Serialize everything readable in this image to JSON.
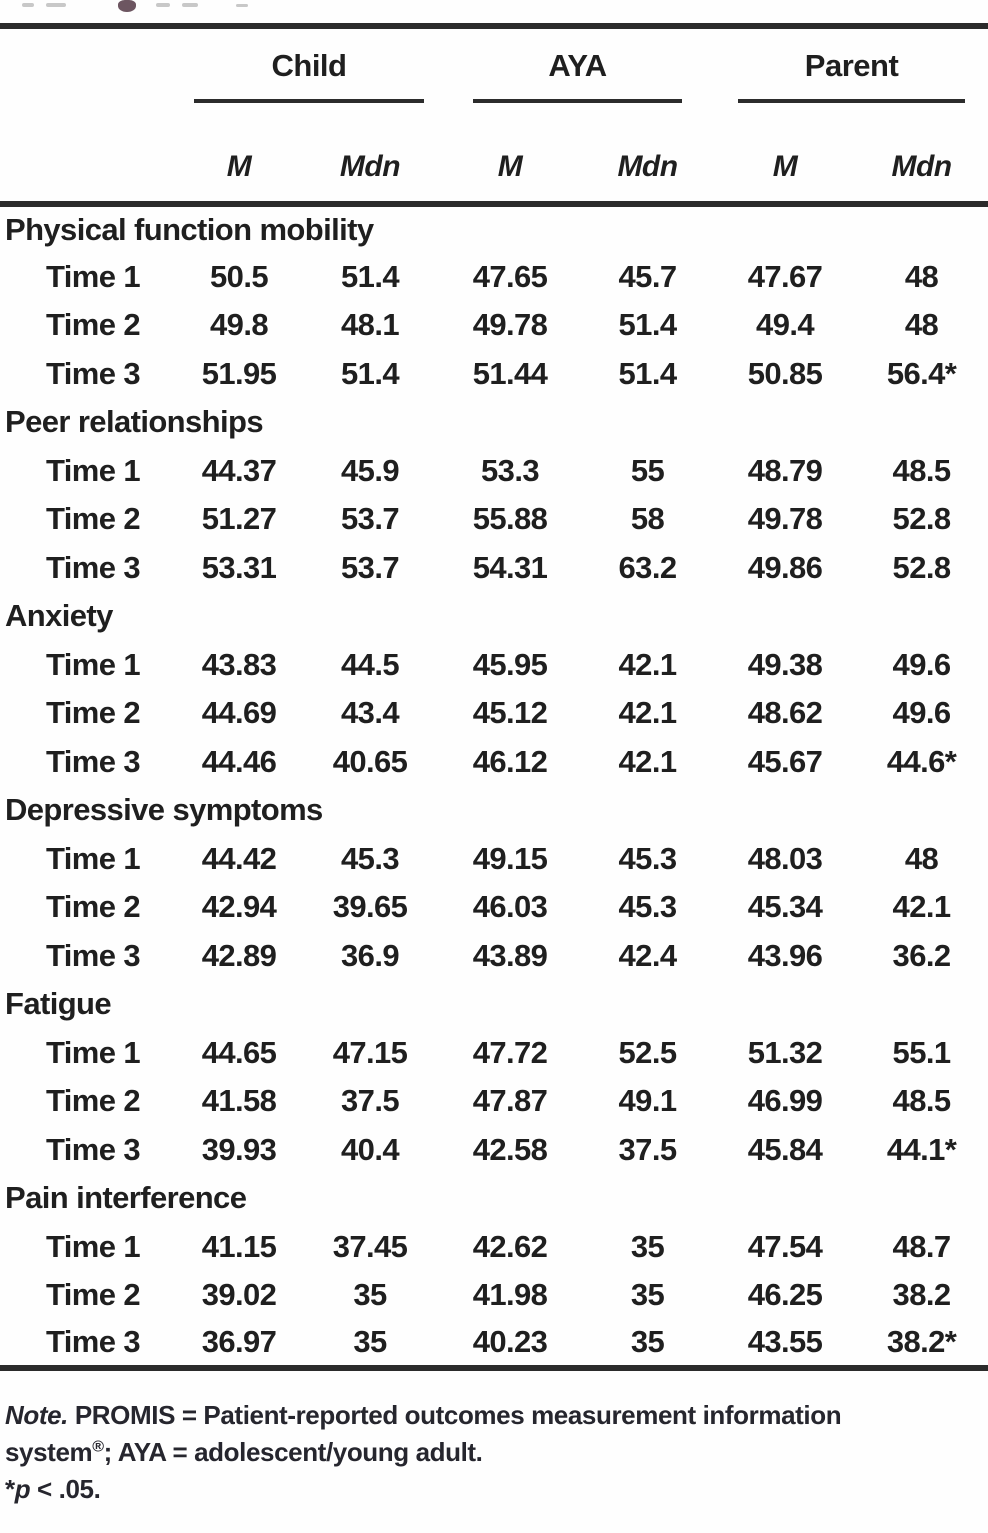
{
  "table": {
    "groups": [
      {
        "label": "Child"
      },
      {
        "label": "AYA"
      },
      {
        "label": "Parent"
      }
    ],
    "subheaders": [
      "M",
      "Mdn",
      "M",
      "Mdn",
      "M",
      "Mdn"
    ],
    "sections": [
      {
        "name": "Physical function mobility",
        "rows": [
          {
            "label": "Time 1",
            "values": [
              "50.5",
              "51.4",
              "47.65",
              "45.7",
              "47.67",
              "48"
            ]
          },
          {
            "label": "Time 2",
            "values": [
              "49.8",
              "48.1",
              "49.78",
              "51.4",
              "49.4",
              "48"
            ]
          },
          {
            "label": "Time 3",
            "values": [
              "51.95",
              "51.4",
              "51.44",
              "51.4",
              "50.85",
              "56.4*"
            ]
          }
        ]
      },
      {
        "name": "Peer relationships",
        "rows": [
          {
            "label": "Time 1",
            "values": [
              "44.37",
              "45.9",
              "53.3",
              "55",
              "48.79",
              "48.5"
            ]
          },
          {
            "label": "Time 2",
            "values": [
              "51.27",
              "53.7",
              "55.88",
              "58",
              "49.78",
              "52.8"
            ]
          },
          {
            "label": "Time 3",
            "values": [
              "53.31",
              "53.7",
              "54.31",
              "63.2",
              "49.86",
              "52.8"
            ]
          }
        ]
      },
      {
        "name": "Anxiety",
        "rows": [
          {
            "label": "Time 1",
            "values": [
              "43.83",
              "44.5",
              "45.95",
              "42.1",
              "49.38",
              "49.6"
            ]
          },
          {
            "label": "Time 2",
            "values": [
              "44.69",
              "43.4",
              "45.12",
              "42.1",
              "48.62",
              "49.6"
            ]
          },
          {
            "label": "Time 3",
            "values": [
              "44.46",
              "40.65",
              "46.12",
              "42.1",
              "45.67",
              "44.6*"
            ]
          }
        ]
      },
      {
        "name": "Depressive symptoms",
        "rows": [
          {
            "label": "Time 1",
            "values": [
              "44.42",
              "45.3",
              "49.15",
              "45.3",
              "48.03",
              "48"
            ]
          },
          {
            "label": "Time 2",
            "values": [
              "42.94",
              "39.65",
              "46.03",
              "45.3",
              "45.34",
              "42.1"
            ]
          },
          {
            "label": "Time 3",
            "values": [
              "42.89",
              "36.9",
              "43.89",
              "42.4",
              "43.96",
              "36.2"
            ]
          }
        ]
      },
      {
        "name": "Fatigue",
        "rows": [
          {
            "label": "Time 1",
            "values": [
              "44.65",
              "47.15",
              "47.72",
              "52.5",
              "51.32",
              "55.1"
            ]
          },
          {
            "label": "Time 2",
            "values": [
              "41.58",
              "37.5",
              "47.87",
              "49.1",
              "46.99",
              "48.5"
            ]
          },
          {
            "label": "Time 3",
            "values": [
              "39.93",
              "40.4",
              "42.58",
              "37.5",
              "45.84",
              "44.1*"
            ]
          }
        ]
      },
      {
        "name": "Pain interference",
        "rows": [
          {
            "label": "Time 1",
            "values": [
              "41.15",
              "37.45",
              "42.62",
              "35",
              "47.54",
              "48.7"
            ]
          },
          {
            "label": "Time 2",
            "values": [
              "39.02",
              "35",
              "41.98",
              "35",
              "46.25",
              "38.2"
            ]
          },
          {
            "label": "Time 3",
            "values": [
              "36.97",
              "35",
              "40.23",
              "35",
              "43.55",
              "38.2*"
            ]
          }
        ]
      }
    ]
  },
  "note": {
    "label": "Note.",
    "line1_rest": " PROMIS =  Patient-reported outcomes measurement information",
    "line2_pre": "system",
    "line2_sup": "®",
    "line2_post": "; AYA = adolescent/young adult.",
    "sig_star": "*",
    "sig_p": "p",
    "sig_rest": " < .05."
  },
  "colors": {
    "text": "#1f1f1f",
    "rule": "#2b2b2b",
    "background": "#fefefe"
  }
}
